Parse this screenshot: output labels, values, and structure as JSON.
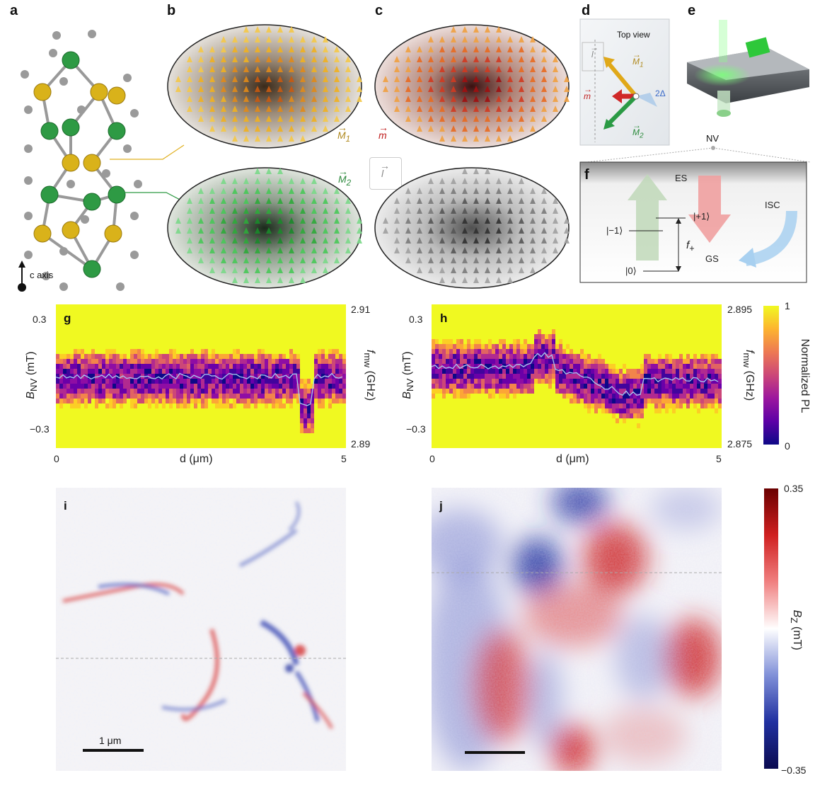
{
  "panels": {
    "a": {
      "letter": "a",
      "axis_label": "c axis"
    },
    "b": {
      "letter": "b",
      "vec1": "M",
      "vec1_sub": "1",
      "vec2": "M",
      "vec2_sub": "2"
    },
    "c": {
      "letter": "c",
      "vec1": "m",
      "vec2": "l"
    },
    "d": {
      "letter": "d",
      "title": "Top view",
      "l": "l",
      "m": "m",
      "M1": "M",
      "M1_sub": "1",
      "M2": "M",
      "M2_sub": "2",
      "angle": "2Δ"
    },
    "e": {
      "letter": "e",
      "nv": "NV"
    },
    "f": {
      "letter": "f",
      "es": "ES",
      "gs": "GS",
      "isc": "ISC",
      "minus1": "|−1⟩",
      "plus1": "|+1⟩",
      "zero": "|0⟩",
      "fplus": "f",
      "fplus_sub": "+"
    },
    "g": {
      "letter": "g",
      "ylabel_left": "B",
      "ylabel_left_sub": "NV",
      "ylabel_left_unit": " (mT)",
      "yticks_left": [
        "0.3",
        "−0.3"
      ],
      "yticks_right": [
        "2.91",
        "2.89"
      ],
      "ylabel_right": "f",
      "ylabel_right_sub": "mw",
      "ylabel_right_unit": " (GHz)",
      "xticks": [
        "0",
        "5"
      ],
      "xlabel": "d (μm)"
    },
    "h": {
      "letter": "h",
      "ylabel_left": "B",
      "ylabel_left_sub": "NV",
      "ylabel_left_unit": " (mT)",
      "yticks_left": [
        "0.3",
        "−0.3"
      ],
      "yticks_right": [
        "2.895",
        "2.875"
      ],
      "ylabel_right": "f",
      "ylabel_right_sub": "mw",
      "ylabel_right_unit": " (GHz)",
      "xticks": [
        "0",
        "5"
      ],
      "xlabel": "d (μm)"
    },
    "pl_colorbar": {
      "label": "Normalized PL",
      "max": "1",
      "min": "0"
    },
    "i": {
      "letter": "i",
      "scalebar": "1 μm"
    },
    "j": {
      "letter": "j"
    },
    "bz_colorbar": {
      "label": "B",
      "label_sub": "Z",
      "unit": " (mT)",
      "max": "0.35",
      "min": "−0.35"
    }
  },
  "colors": {
    "gold": "#d9a520",
    "green": "#2e9a44",
    "red": "#d42a2a",
    "blue": "#1a2aa0",
    "plasma_low": "#1b0c6b",
    "plasma_high": "#f9d02a"
  }
}
